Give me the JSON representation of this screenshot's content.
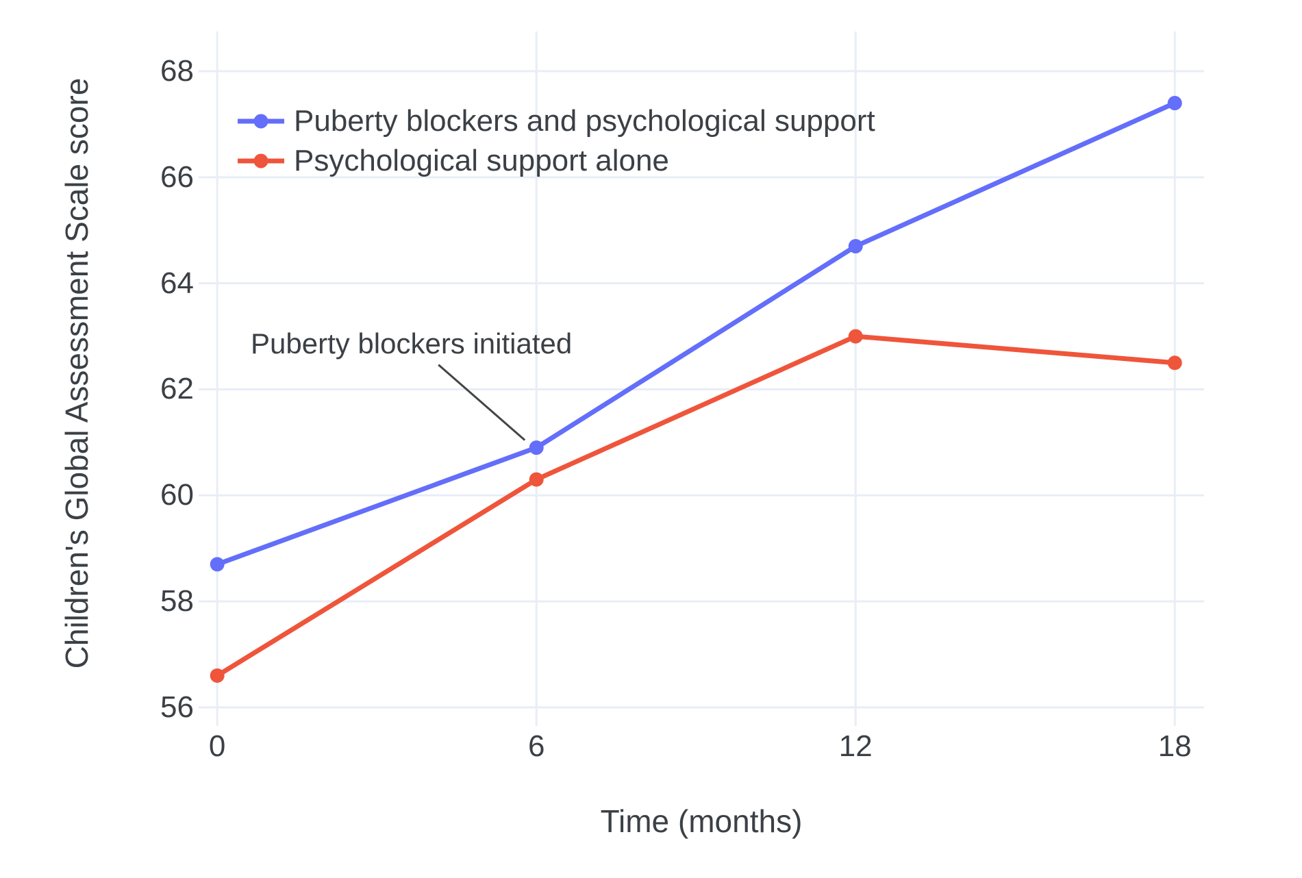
{
  "chart_data": {
    "type": "line",
    "x": [
      0,
      6,
      12,
      18
    ],
    "series": [
      {
        "name": "Puberty blockers and psychological support",
        "color": "#636EFA",
        "values": [
          58.7,
          60.9,
          64.7,
          67.4
        ]
      },
      {
        "name": "Psychological support alone",
        "color": "#EF553B",
        "values": [
          56.6,
          60.3,
          63.0,
          62.5
        ]
      }
    ],
    "title": "",
    "xlabel": "Time (months)",
    "ylabel": "Children's Global Assessment Scale score",
    "x_ticks": [
      0,
      6,
      12,
      18
    ],
    "y_ticks": [
      56,
      58,
      60,
      62,
      64,
      66,
      68
    ],
    "xlim": [
      -0.35,
      18.55
    ],
    "ylim": [
      55.65,
      68.75
    ],
    "grid": true,
    "legend_position": "inside-top-left",
    "annotation": {
      "text": "Puberty blockers initiated",
      "target_x": 6,
      "target_series": 0
    }
  },
  "colors": {
    "background": "#ffffff",
    "grid": "#e8edf6",
    "text": "#3b4046",
    "annotation_line": "#444444"
  }
}
